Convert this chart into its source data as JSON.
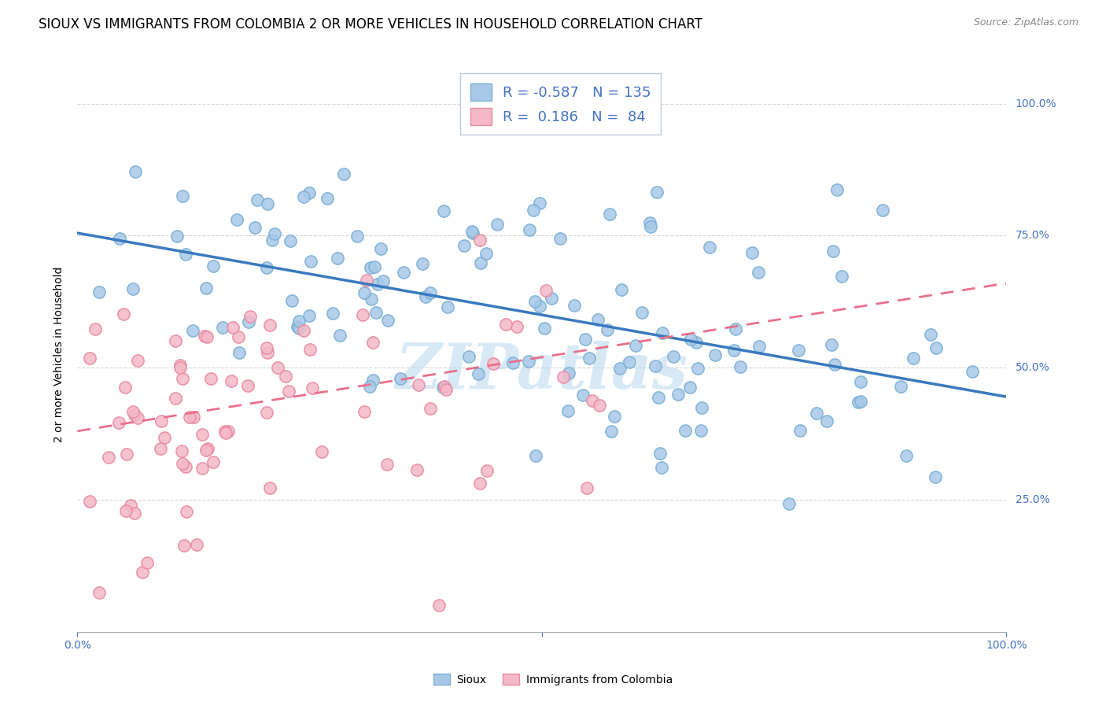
{
  "title": "SIOUX VS IMMIGRANTS FROM COLOMBIA 2 OR MORE VEHICLES IN HOUSEHOLD CORRELATION CHART",
  "source": "Source: ZipAtlas.com",
  "ylabel": "2 or more Vehicles in Household",
  "watermark": "ZIPatlas",
  "legend_sioux_R": "-0.587",
  "legend_sioux_N": "135",
  "legend_colombia_R": "0.186",
  "legend_colombia_N": "84",
  "sioux_color": "#a8c8e8",
  "sioux_edge_color": "#7bafd4",
  "colombia_color": "#f4b8c8",
  "colombia_edge_color": "#e88aa0",
  "sioux_line_color": "#3a7abf",
  "colombia_line_color": "#e8708a",
  "bg_color": "#ffffff",
  "grid_color": "#cccccc",
  "title_fontsize": 12,
  "axis_label_fontsize": 10,
  "tick_fontsize": 10,
  "legend_fontsize": 13,
  "sioux_intercept": 0.755,
  "sioux_slope": -0.31,
  "colombia_intercept": 0.38,
  "colombia_slope": 0.28,
  "right_labels": [
    [
      1.0,
      "100.0%"
    ],
    [
      0.75,
      "75.0%"
    ],
    [
      0.5,
      "50.0%"
    ],
    [
      0.25,
      "25.0%"
    ]
  ],
  "bottom_labels": [
    [
      0.0,
      "0.0%"
    ],
    [
      1.0,
      "100.0%"
    ]
  ],
  "legend_bottom_labels": [
    "Sioux",
    "Immigrants from Colombia"
  ]
}
